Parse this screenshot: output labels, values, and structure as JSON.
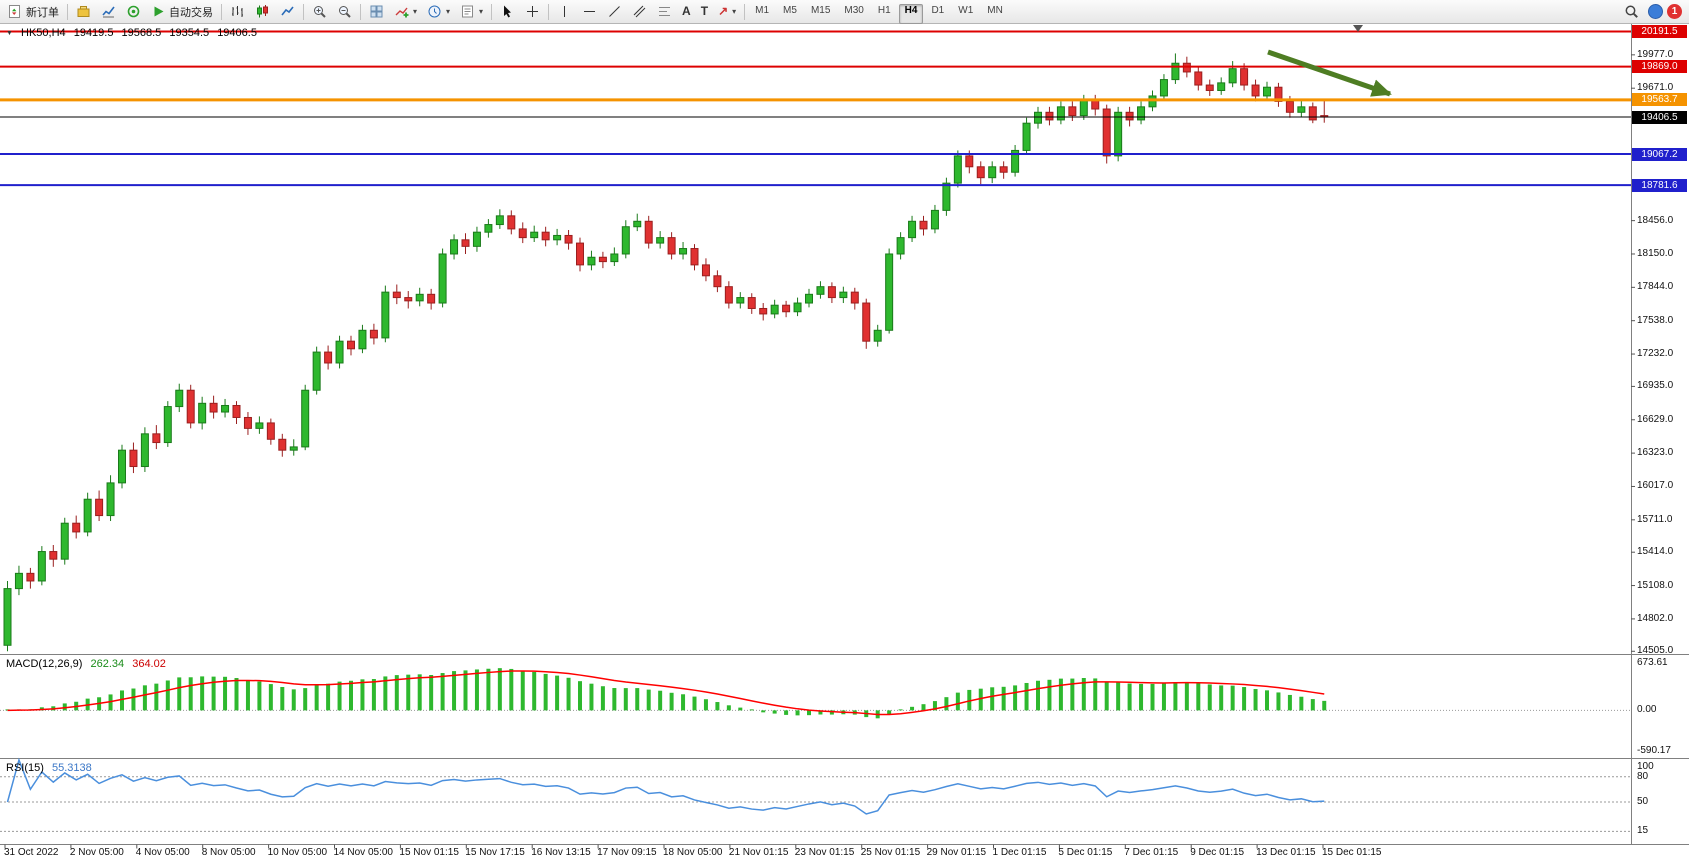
{
  "toolbar": {
    "new_order_label": "新订单",
    "auto_trading_label": "自动交易",
    "timeframes": [
      "M1",
      "M5",
      "M15",
      "M30",
      "H1",
      "H4",
      "D1",
      "W1",
      "MN"
    ],
    "active_timeframe": "H4",
    "notification_count": "1"
  },
  "chart_data": {
    "type": "candlestick",
    "symbol": "HK50",
    "period": "H4",
    "title": {
      "symbol_period": "HK50,H4",
      "open": "19419.5",
      "high": "19568.5",
      "low": "19354.5",
      "close": "19406.5"
    },
    "price_axis": {
      "min": 14480,
      "max": 20260,
      "ticks": [
        "19977.0",
        "19671.0",
        "18456.0",
        "18150.0",
        "17844.0",
        "17538.0",
        "17232.0",
        "16935.0",
        "16629.0",
        "16323.0",
        "16017.0",
        "15711.0",
        "15414.0",
        "15108.0",
        "14802.0",
        "14505.0"
      ]
    },
    "hlines": [
      {
        "price": 20191.5,
        "label": "20191.5",
        "color": "#dd0000",
        "thickness": 2
      },
      {
        "price": 19869.0,
        "label": "19869.0",
        "color": "#dd0000",
        "thickness": 2
      },
      {
        "price": 19563.7,
        "label": "19563.7",
        "color": "#f59300",
        "thickness": 3
      },
      {
        "price": 19406.5,
        "label": "19406.5",
        "color": "#000000",
        "thickness": 1
      },
      {
        "price": 19067.2,
        "label": "19067.2",
        "color": "#2020cc",
        "thickness": 2
      },
      {
        "price": 18781.6,
        "label": "18781.6",
        "color": "#2020cc",
        "thickness": 2
      }
    ],
    "trend_arrow": {
      "direction": "down-right",
      "color": "#4e7d23"
    },
    "colors": {
      "up": "#2eb82e",
      "up_stroke": "#1a7a1a",
      "down": "#e03131",
      "down_stroke": "#9a1f1f",
      "macd_hist": "#2eb82e",
      "macd_signal": "#ff0000",
      "rsi_line": "#4a8fdd"
    },
    "time_labels": [
      "31 Oct 2022",
      "2 Nov 05:00",
      "4 Nov 05:00",
      "8 Nov 05:00",
      "10 Nov 05:00",
      "14 Nov 05:00",
      "15 Nov 01:15",
      "15 Nov 17:15",
      "16 Nov 13:15",
      "17 Nov 09:15",
      "18 Nov 05:00",
      "21 Nov 01:15",
      "23 Nov 01:15",
      "25 Nov 01:15",
      "29 Nov 01:15",
      "1 Dec 01:15",
      "5 Dec 01:15",
      "7 Dec 01:15",
      "9 Dec 01:15",
      "13 Dec 01:15",
      "15 Dec 01:15"
    ],
    "indicators": {
      "macd": {
        "name": "MACD(12,26,9)",
        "value_main": "262.34",
        "value_signal": "364.02",
        "fast": 12,
        "slow": 26,
        "signal": 9,
        "axis_labels": [
          "673.61",
          "0.00",
          "-590.17"
        ],
        "max": 673.61,
        "min": -590.17
      },
      "rsi": {
        "name": "RSI(15)",
        "value": "55.3138",
        "period": 15,
        "levels": [
          80,
          50,
          15
        ],
        "axis_labels": [
          "100",
          "80",
          "50",
          "15"
        ],
        "max": 100,
        "min": 0
      }
    },
    "candles": [
      [
        14560,
        15150,
        14505,
        15080
      ],
      [
        15080,
        15290,
        15020,
        15220
      ],
      [
        15220,
        15270,
        15080,
        15150
      ],
      [
        15150,
        15470,
        15110,
        15420
      ],
      [
        15420,
        15480,
        15280,
        15350
      ],
      [
        15350,
        15730,
        15300,
        15680
      ],
      [
        15680,
        15750,
        15540,
        15600
      ],
      [
        15600,
        15960,
        15560,
        15900
      ],
      [
        15900,
        15980,
        15700,
        15750
      ],
      [
        15750,
        16120,
        15700,
        16050
      ],
      [
        16050,
        16400,
        16000,
        16350
      ],
      [
        16350,
        16420,
        16140,
        16200
      ],
      [
        16200,
        16560,
        16150,
        16500
      ],
      [
        16500,
        16580,
        16360,
        16420
      ],
      [
        16420,
        16800,
        16380,
        16750
      ],
      [
        16750,
        16960,
        16700,
        16900
      ],
      [
        16900,
        16950,
        16550,
        16600
      ],
      [
        16600,
        16840,
        16540,
        16780
      ],
      [
        16780,
        16850,
        16640,
        16700
      ],
      [
        16700,
        16820,
        16650,
        16760
      ],
      [
        16760,
        16800,
        16590,
        16650
      ],
      [
        16650,
        16700,
        16490,
        16550
      ],
      [
        16550,
        16660,
        16500,
        16600
      ],
      [
        16600,
        16640,
        16400,
        16450
      ],
      [
        16450,
        16500,
        16290,
        16350
      ],
      [
        16350,
        16450,
        16300,
        16380
      ],
      [
        16380,
        16950,
        16350,
        16900
      ],
      [
        16900,
        17300,
        16860,
        17250
      ],
      [
        17250,
        17310,
        17090,
        17150
      ],
      [
        17150,
        17400,
        17100,
        17350
      ],
      [
        17350,
        17400,
        17220,
        17280
      ],
      [
        17280,
        17500,
        17240,
        17450
      ],
      [
        17450,
        17510,
        17320,
        17380
      ],
      [
        17380,
        17860,
        17340,
        17800
      ],
      [
        17800,
        17870,
        17690,
        17750
      ],
      [
        17750,
        17810,
        17650,
        17720
      ],
      [
        17720,
        17840,
        17670,
        17780
      ],
      [
        17780,
        17830,
        17640,
        17700
      ],
      [
        17700,
        18200,
        17660,
        18150
      ],
      [
        18150,
        18330,
        18100,
        18280
      ],
      [
        18280,
        18340,
        18150,
        18220
      ],
      [
        18220,
        18400,
        18170,
        18350
      ],
      [
        18350,
        18470,
        18300,
        18420
      ],
      [
        18420,
        18560,
        18380,
        18500
      ],
      [
        18500,
        18550,
        18330,
        18380
      ],
      [
        18380,
        18440,
        18250,
        18300
      ],
      [
        18300,
        18410,
        18260,
        18350
      ],
      [
        18350,
        18400,
        18220,
        18280
      ],
      [
        18280,
        18380,
        18230,
        18320
      ],
      [
        18320,
        18370,
        18190,
        18250
      ],
      [
        18250,
        18300,
        17990,
        18050
      ],
      [
        18050,
        18180,
        18000,
        18120
      ],
      [
        18120,
        18170,
        18020,
        18080
      ],
      [
        18080,
        18210,
        18040,
        18150
      ],
      [
        18150,
        18460,
        18110,
        18400
      ],
      [
        18400,
        18520,
        18360,
        18450
      ],
      [
        18450,
        18500,
        18200,
        18250
      ],
      [
        18250,
        18360,
        18200,
        18300
      ],
      [
        18300,
        18350,
        18100,
        18150
      ],
      [
        18150,
        18260,
        18100,
        18200
      ],
      [
        18200,
        18240,
        18000,
        18050
      ],
      [
        18050,
        18110,
        17900,
        17950
      ],
      [
        17950,
        18000,
        17800,
        17850
      ],
      [
        17850,
        17900,
        17650,
        17700
      ],
      [
        17700,
        17800,
        17650,
        17750
      ],
      [
        17750,
        17790,
        17600,
        17650
      ],
      [
        17650,
        17700,
        17540,
        17600
      ],
      [
        17600,
        17730,
        17560,
        17680
      ],
      [
        17680,
        17720,
        17570,
        17620
      ],
      [
        17620,
        17750,
        17580,
        17700
      ],
      [
        17700,
        17830,
        17660,
        17780
      ],
      [
        17780,
        17900,
        17740,
        17850
      ],
      [
        17850,
        17890,
        17700,
        17750
      ],
      [
        17750,
        17850,
        17700,
        17800
      ],
      [
        17800,
        17840,
        17640,
        17700
      ],
      [
        17700,
        17740,
        17280,
        17350
      ],
      [
        17350,
        17500,
        17300,
        17450
      ],
      [
        17450,
        18200,
        17420,
        18150
      ],
      [
        18150,
        18350,
        18100,
        18300
      ],
      [
        18300,
        18500,
        18260,
        18450
      ],
      [
        18450,
        18500,
        18320,
        18380
      ],
      [
        18380,
        18600,
        18340,
        18550
      ],
      [
        18550,
        18850,
        18500,
        18800
      ],
      [
        18800,
        19100,
        18760,
        19050
      ],
      [
        19050,
        19100,
        18890,
        18950
      ],
      [
        18950,
        19000,
        18790,
        18850
      ],
      [
        18850,
        19000,
        18800,
        18950
      ],
      [
        18950,
        19000,
        18840,
        18900
      ],
      [
        18900,
        19150,
        18860,
        19100
      ],
      [
        19100,
        19400,
        19060,
        19350
      ],
      [
        19350,
        19500,
        19300,
        19450
      ],
      [
        19450,
        19500,
        19330,
        19380
      ],
      [
        19380,
        19550,
        19340,
        19500
      ],
      [
        19500,
        19550,
        19370,
        19420
      ],
      [
        19420,
        19610,
        19380,
        19560
      ],
      [
        19560,
        19610,
        19420,
        19480
      ],
      [
        19480,
        19520,
        18980,
        19050
      ],
      [
        19050,
        19500,
        19000,
        19450
      ],
      [
        19450,
        19500,
        19320,
        19380
      ],
      [
        19380,
        19550,
        19340,
        19500
      ],
      [
        19500,
        19650,
        19460,
        19600
      ],
      [
        19600,
        19800,
        19560,
        19750
      ],
      [
        19750,
        19990,
        19710,
        19900
      ],
      [
        19900,
        19960,
        19770,
        19820
      ],
      [
        19820,
        19870,
        19650,
        19700
      ],
      [
        19700,
        19750,
        19600,
        19650
      ],
      [
        19650,
        19770,
        19610,
        19720
      ],
      [
        19720,
        19920,
        19680,
        19850
      ],
      [
        19850,
        19900,
        19650,
        19700
      ],
      [
        19700,
        19750,
        19550,
        19600
      ],
      [
        19600,
        19730,
        19560,
        19680
      ],
      [
        19680,
        19720,
        19500,
        19550
      ],
      [
        19550,
        19600,
        19400,
        19450
      ],
      [
        19450,
        19560,
        19410,
        19500
      ],
      [
        19500,
        19540,
        19350,
        19380
      ],
      [
        19419.5,
        19568.5,
        19354.5,
        19406.5
      ]
    ]
  }
}
